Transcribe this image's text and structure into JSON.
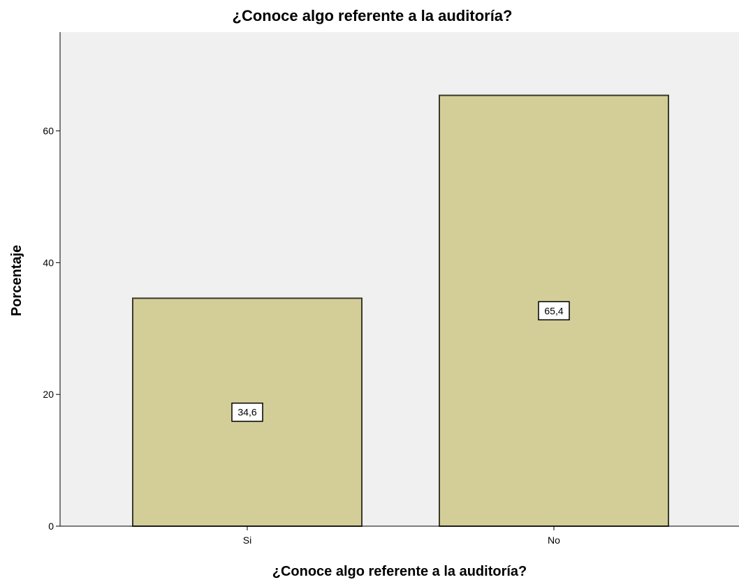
{
  "chart_data": {
    "type": "bar",
    "title": "¿Conoce algo referente a la auditoría?",
    "xlabel": "¿Conoce algo referente a la auditoría?",
    "ylabel": "Porcentaje",
    "categories": [
      "Si",
      "No"
    ],
    "values": [
      34.6,
      65.4
    ],
    "data_labels": [
      "34,6",
      "65,4"
    ],
    "ylim": [
      0,
      75
    ],
    "yticks": [
      0,
      20,
      40,
      60
    ],
    "ytick_labels": [
      "0",
      "20",
      "40",
      "60"
    ],
    "grid": false,
    "legend": "none",
    "colors": {
      "bar_fill": "#d3cd98",
      "bar_stroke": "#3a3a2a",
      "plot_background": "#f0f0f0",
      "label_box_fill": "#ffffff"
    }
  }
}
